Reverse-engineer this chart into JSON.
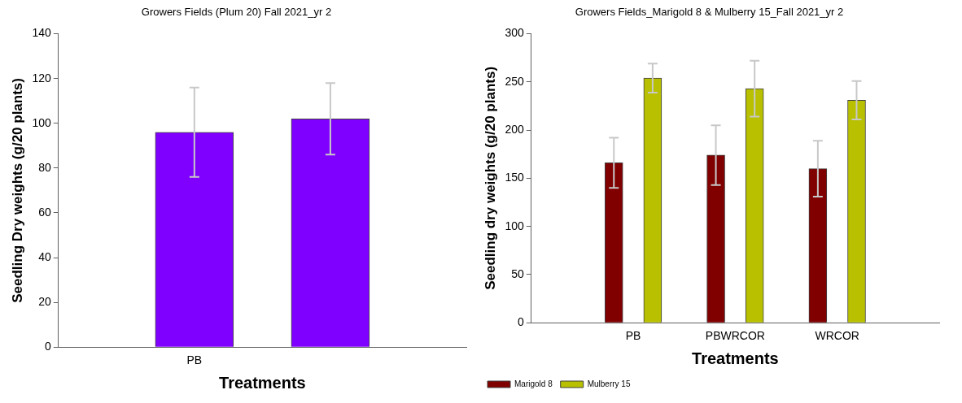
{
  "chart_data": [
    {
      "type": "bar",
      "title": "Growers Fields (Plum 20) Fall 2021_yr 2",
      "xlabel": "Treatments",
      "ylabel": "Seedling Dry weights (g/20 plants)",
      "categories": [
        "PB",
        null
      ],
      "values": [
        96,
        102
      ],
      "errors": [
        20,
        16
      ],
      "color": "#8000ff",
      "ylim": [
        0,
        140
      ],
      "yticks": [
        0,
        20,
        40,
        60,
        80,
        100,
        120,
        140
      ],
      "grid": false
    },
    {
      "type": "bar",
      "title": "Growers Fields_Marigold 8 & Mulberry 15_Fall 2021_yr 2",
      "xlabel": "Treatments",
      "ylabel": "Seedling dry weights (g/20 plants)",
      "categories": [
        "PB",
        "PBWRCOR",
        "WRCOR"
      ],
      "series": [
        {
          "name": "Marigold 8",
          "color": "#800000",
          "values": [
            166,
            174,
            160
          ],
          "errors": [
            26,
            31,
            29
          ]
        },
        {
          "name": "Mulberry 15",
          "color": "#b8c000",
          "values": [
            254,
            243,
            231
          ],
          "errors": [
            15,
            29,
            20
          ]
        }
      ],
      "ylim": [
        0,
        300
      ],
      "yticks": [
        0,
        50,
        100,
        150,
        200,
        250,
        300
      ],
      "grid": false,
      "legend": "bottom left"
    }
  ]
}
